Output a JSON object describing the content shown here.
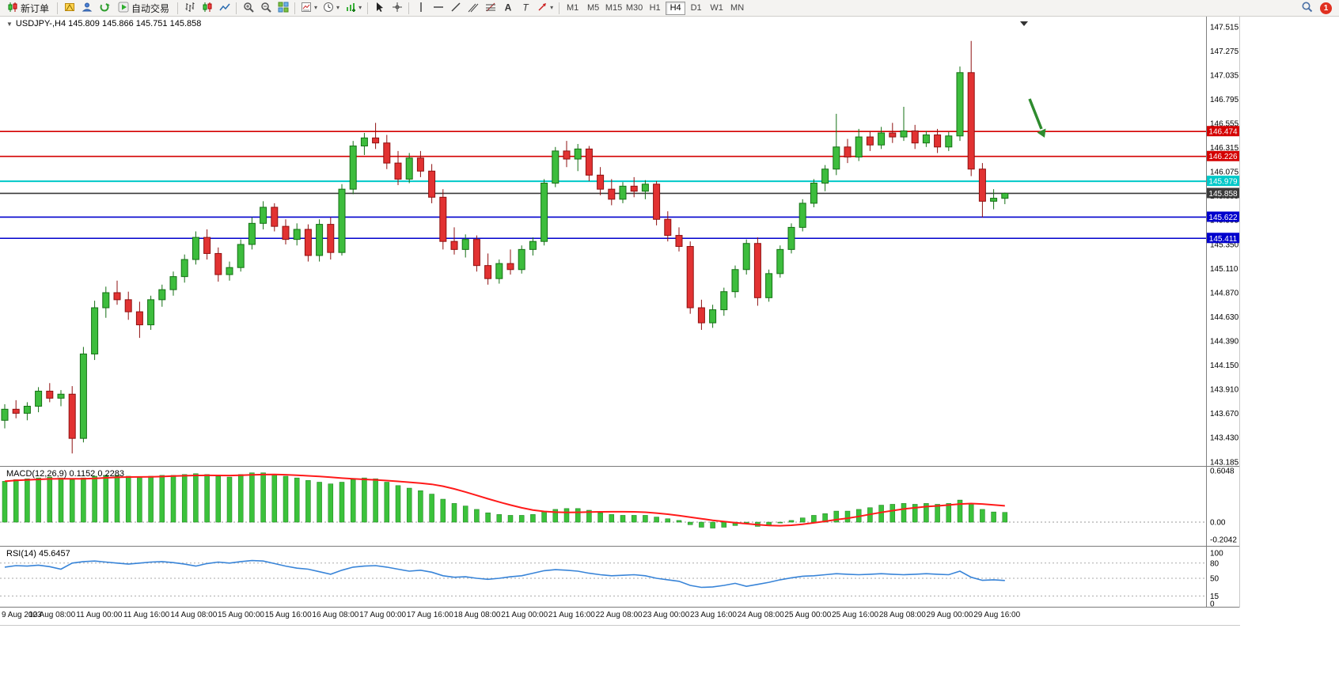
{
  "toolbar": {
    "new_order": "新订单",
    "auto_trading": "自动交易",
    "timeframes": [
      "M1",
      "M5",
      "M15",
      "M30",
      "H1",
      "H4",
      "D1",
      "W1",
      "MN"
    ],
    "active_timeframe": "H4",
    "notification_count": "1",
    "text_tool_label": "A",
    "label_tool_label": "T"
  },
  "chart_data": {
    "type": "candlestick",
    "symbol": "USDJPY-",
    "timeframe": "H4",
    "ohlc_label": "USDJPY-,H4  145.809 145.866 145.751 145.858",
    "y_min": 143.185,
    "y_max": 147.515,
    "y_ticks": [
      147.515,
      147.275,
      147.035,
      146.795,
      146.555,
      146.315,
      146.075,
      145.835,
      145.595,
      145.35,
      145.11,
      144.87,
      144.63,
      144.39,
      144.15,
      143.91,
      143.67,
      143.43,
      143.185
    ],
    "x_labels": [
      "9 Aug 2023",
      "10 Aug 08:00",
      "11 Aug 00:00",
      "11 Aug 16:00",
      "14 Aug 08:00",
      "15 Aug 00:00",
      "15 Aug 16:00",
      "16 Aug 08:00",
      "17 Aug 00:00",
      "17 Aug 16:00",
      "18 Aug 08:00",
      "21 Aug 00:00",
      "21 Aug 16:00",
      "22 Aug 08:00",
      "23 Aug 00:00",
      "23 Aug 16:00",
      "24 Aug 08:00",
      "25 Aug 00:00",
      "25 Aug 16:00",
      "28 Aug 08:00",
      "29 Aug 00:00",
      "29 Aug 16:00"
    ],
    "hlines": [
      {
        "value": 146.474,
        "color": "#d40000",
        "width": 1.6
      },
      {
        "value": 146.226,
        "color": "#d40000",
        "width": 1.6
      },
      {
        "value": 145.979,
        "color": "#00c8c8",
        "width": 2
      },
      {
        "value": 145.858,
        "color": "#3a3a3a",
        "width": 1.6
      },
      {
        "value": 145.622,
        "color": "#0000cd",
        "width": 1.6
      },
      {
        "value": 145.411,
        "color": "#0000cd",
        "width": 1.6
      }
    ],
    "colors": {
      "bull": "#3dbd3d",
      "bull_edge": "#157015",
      "bear": "#e23232",
      "bear_edge": "#8f1010",
      "macd_hist": "#3bc23b",
      "macd_signal": "#ff1a1a",
      "rsi": "#3884d8",
      "arrow": "#2e8b2e"
    },
    "candles": [
      [
        143.6,
        143.76,
        143.52,
        143.71
      ],
      [
        143.71,
        143.8,
        143.62,
        143.67
      ],
      [
        143.67,
        143.78,
        143.6,
        143.74
      ],
      [
        143.74,
        143.93,
        143.68,
        143.89
      ],
      [
        143.89,
        143.97,
        143.78,
        143.82
      ],
      [
        143.82,
        143.9,
        143.74,
        143.86
      ],
      [
        143.86,
        143.94,
        143.27,
        143.42
      ],
      [
        143.42,
        144.33,
        143.38,
        144.26
      ],
      [
        144.26,
        144.79,
        144.2,
        144.72
      ],
      [
        144.72,
        144.93,
        144.62,
        144.87
      ],
      [
        144.87,
        144.99,
        144.75,
        144.8
      ],
      [
        144.8,
        144.88,
        144.6,
        144.68
      ],
      [
        144.68,
        144.78,
        144.42,
        144.55
      ],
      [
        144.55,
        144.84,
        144.5,
        144.8
      ],
      [
        144.8,
        144.95,
        144.73,
        144.9
      ],
      [
        144.9,
        145.08,
        144.84,
        145.03
      ],
      [
        145.03,
        145.25,
        144.97,
        145.2
      ],
      [
        145.2,
        145.48,
        145.15,
        145.42
      ],
      [
        145.42,
        145.5,
        145.2,
        145.26
      ],
      [
        145.26,
        145.32,
        144.98,
        145.05
      ],
      [
        145.05,
        145.18,
        144.99,
        145.12
      ],
      [
        145.12,
        145.4,
        145.08,
        145.35
      ],
      [
        145.35,
        145.62,
        145.3,
        145.56
      ],
      [
        145.56,
        145.78,
        145.5,
        145.72
      ],
      [
        145.72,
        145.76,
        145.48,
        145.53
      ],
      [
        145.53,
        145.6,
        145.35,
        145.4
      ],
      [
        145.4,
        145.56,
        145.34,
        145.5
      ],
      [
        145.5,
        145.55,
        145.18,
        145.24
      ],
      [
        145.24,
        145.6,
        145.18,
        145.55
      ],
      [
        145.55,
        145.62,
        145.2,
        145.27
      ],
      [
        145.27,
        145.95,
        145.24,
        145.9
      ],
      [
        145.9,
        146.38,
        145.85,
        146.33
      ],
      [
        146.33,
        146.46,
        146.24,
        146.41
      ],
      [
        146.41,
        146.56,
        146.3,
        146.36
      ],
      [
        146.36,
        146.44,
        146.1,
        146.16
      ],
      [
        146.16,
        146.28,
        145.94,
        146.0
      ],
      [
        146.0,
        146.26,
        145.96,
        146.21
      ],
      [
        146.21,
        146.28,
        146.02,
        146.08
      ],
      [
        146.08,
        146.15,
        145.76,
        145.82
      ],
      [
        145.82,
        145.9,
        145.3,
        145.38
      ],
      [
        145.38,
        145.52,
        145.25,
        145.3
      ],
      [
        145.3,
        145.45,
        145.22,
        145.4
      ],
      [
        145.4,
        145.44,
        145.08,
        145.14
      ],
      [
        145.14,
        145.26,
        144.95,
        145.01
      ],
      [
        145.01,
        145.2,
        144.96,
        145.16
      ],
      [
        145.16,
        145.3,
        145.05,
        145.1
      ],
      [
        145.1,
        145.34,
        145.06,
        145.3
      ],
      [
        145.3,
        145.42,
        145.24,
        145.38
      ],
      [
        145.38,
        146.0,
        145.34,
        145.96
      ],
      [
        145.96,
        146.32,
        145.92,
        146.28
      ],
      [
        146.28,
        146.38,
        146.12,
        146.2
      ],
      [
        146.2,
        146.35,
        146.08,
        146.3
      ],
      [
        146.3,
        146.33,
        145.98,
        146.04
      ],
      [
        146.04,
        146.12,
        145.84,
        145.9
      ],
      [
        145.9,
        146.0,
        145.74,
        145.8
      ],
      [
        145.8,
        145.97,
        145.76,
        145.93
      ],
      [
        145.93,
        146.02,
        145.82,
        145.88
      ],
      [
        145.88,
        145.99,
        145.8,
        145.95
      ],
      [
        145.95,
        145.98,
        145.54,
        145.6
      ],
      [
        145.6,
        145.68,
        145.38,
        145.44
      ],
      [
        145.44,
        145.52,
        145.28,
        145.33
      ],
      [
        145.33,
        145.38,
        144.66,
        144.72
      ],
      [
        144.72,
        144.8,
        144.5,
        144.57
      ],
      [
        144.57,
        144.75,
        144.52,
        144.7
      ],
      [
        144.7,
        144.92,
        144.64,
        144.88
      ],
      [
        144.88,
        145.14,
        144.82,
        145.1
      ],
      [
        145.1,
        145.4,
        145.05,
        145.36
      ],
      [
        145.36,
        145.42,
        144.74,
        144.82
      ],
      [
        144.82,
        145.1,
        144.78,
        145.06
      ],
      [
        145.06,
        145.34,
        145.02,
        145.3
      ],
      [
        145.3,
        145.56,
        145.26,
        145.52
      ],
      [
        145.52,
        145.8,
        145.48,
        145.76
      ],
      [
        145.76,
        146.0,
        145.72,
        145.96
      ],
      [
        145.96,
        146.14,
        145.88,
        146.1
      ],
      [
        146.1,
        146.65,
        146.04,
        146.32
      ],
      [
        146.32,
        146.4,
        146.16,
        146.22
      ],
      [
        146.22,
        146.5,
        146.18,
        146.42
      ],
      [
        146.42,
        146.48,
        146.28,
        146.34
      ],
      [
        146.34,
        146.52,
        146.3,
        146.46
      ],
      [
        146.46,
        146.56,
        146.36,
        146.42
      ],
      [
        146.42,
        146.72,
        146.38,
        146.48
      ],
      [
        146.48,
        146.54,
        146.3,
        146.36
      ],
      [
        146.36,
        146.48,
        146.32,
        146.44
      ],
      [
        146.44,
        146.5,
        146.26,
        146.32
      ],
      [
        146.32,
        146.47,
        146.28,
        146.43
      ],
      [
        146.43,
        147.12,
        146.38,
        147.06
      ],
      [
        147.06,
        147.375,
        146.03,
        146.1
      ],
      [
        146.1,
        146.16,
        145.62,
        145.78
      ],
      [
        145.78,
        145.9,
        145.7,
        145.81
      ],
      [
        145.809,
        145.866,
        145.751,
        145.858
      ]
    ],
    "indicators": [
      {
        "name": "MACD",
        "label": "MACD(12,26,9) 0.1152 0.2283",
        "y_max": 0.6048,
        "y_min": -0.2042,
        "axis": [
          "0.6048",
          "0.00",
          "-0.2042"
        ],
        "hist": [
          0.48,
          0.5,
          0.51,
          0.52,
          0.53,
          0.52,
          0.5,
          0.52,
          0.54,
          0.55,
          0.55,
          0.54,
          0.53,
          0.54,
          0.55,
          0.55,
          0.56,
          0.57,
          0.56,
          0.54,
          0.53,
          0.56,
          0.58,
          0.58,
          0.56,
          0.54,
          0.52,
          0.49,
          0.47,
          0.45,
          0.47,
          0.5,
          0.52,
          0.51,
          0.47,
          0.43,
          0.4,
          0.37,
          0.33,
          0.27,
          0.22,
          0.19,
          0.15,
          0.11,
          0.09,
          0.08,
          0.08,
          0.09,
          0.12,
          0.15,
          0.16,
          0.16,
          0.14,
          0.11,
          0.09,
          0.08,
          0.08,
          0.08,
          0.06,
          0.04,
          0.02,
          -0.03,
          -0.06,
          -0.07,
          -0.06,
          -0.04,
          -0.02,
          -0.05,
          -0.04,
          -0.01,
          0.02,
          0.05,
          0.08,
          0.1,
          0.13,
          0.13,
          0.15,
          0.17,
          0.2,
          0.21,
          0.22,
          0.21,
          0.22,
          0.21,
          0.22,
          0.26,
          0.22,
          0.15,
          0.12,
          0.115
        ]
      },
      {
        "name": "RSI",
        "label": "RSI(14) 45.6457",
        "levels": [
          80,
          50,
          15
        ],
        "axis_ticks": [
          {
            "v": 100,
            "label": "100"
          },
          {
            "v": 80,
            "label": "80"
          },
          {
            "v": 50,
            "label": "50"
          },
          {
            "v": 15,
            "label": "15"
          },
          {
            "v": 0,
            "label": "0"
          }
        ],
        "values": [
          72,
          75,
          74,
          76,
          73,
          68,
          80,
          83,
          84,
          82,
          80,
          78,
          80,
          82,
          83,
          81,
          78,
          74,
          79,
          82,
          80,
          83,
          85,
          84,
          79,
          74,
          70,
          68,
          63,
          58,
          66,
          72,
          74,
          75,
          72,
          68,
          64,
          66,
          62,
          55,
          52,
          53,
          50,
          48,
          50,
          53,
          55,
          60,
          65,
          67,
          66,
          64,
          60,
          57,
          55,
          56,
          57,
          55,
          50,
          47,
          44,
          36,
          32,
          33,
          36,
          40,
          34,
          38,
          42,
          47,
          51,
          54,
          55,
          57,
          59,
          58,
          57,
          58,
          59,
          58,
          57,
          58,
          59,
          58,
          57,
          64,
          52,
          46,
          47,
          45.6
        ]
      }
    ]
  }
}
